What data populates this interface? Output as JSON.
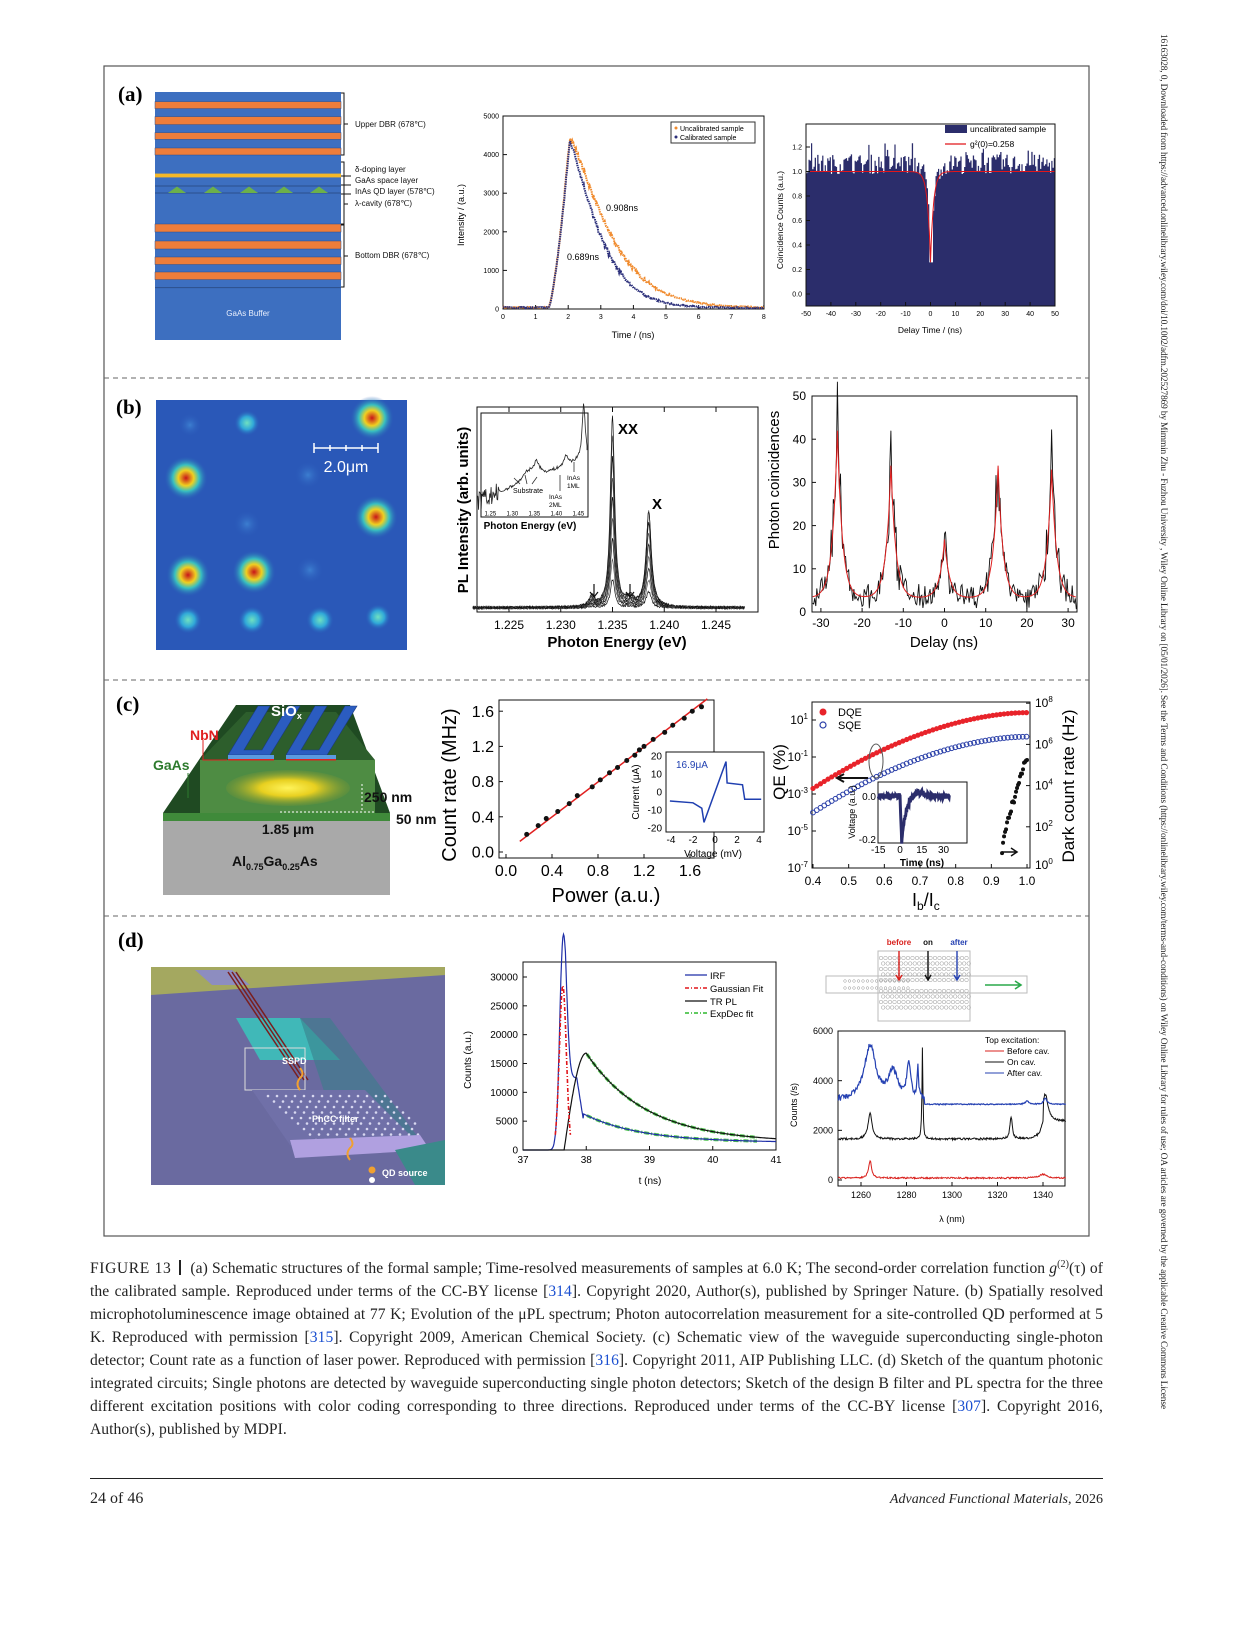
{
  "side_notice": "16163028, 0, Downloaded from https://advanced.onlinelibrary.wiley.com/doi/10.1002/adfm.202527869 by Mimmin Zhu - Fuzhou University , Wiley Online Library on [05/01/2026]. See the Terms and Conditions (https://onlinelibrary.wiley.com/terms-and-conditions) on Wiley Online Library for rules of use; OA articles are governed by the applicable Creative Commons License",
  "figure": {
    "panel_labels": {
      "a": "(a)",
      "b": "(b)",
      "c": "(c)",
      "d": "(d)"
    },
    "a": {
      "schematic": {
        "upper_dbr": "Upper DBR (678℃)",
        "delta_doping": "δ-doping layer",
        "gaas_space": "GaAs space layer",
        "inas_qd": "InAs QD layer (578℃)",
        "cavity": "λ-cavity (678℃)",
        "bottom_dbr": "Bottom DBR (678℃)",
        "buffer": "GaAs Buffer"
      },
      "trpl": {
        "xlabel": "Time / (ns)",
        "ylabel": "Intensity / (a.u.)",
        "xticks": [
          0,
          1,
          2,
          3,
          4,
          5,
          6,
          7,
          8
        ],
        "yticks": [
          0,
          1000,
          2000,
          3000,
          4000,
          5000
        ],
        "legend": {
          "uncalibrated": "Uncalibrated sample",
          "calibrated": "Calibrated sample"
        },
        "annotation_uncal": "0.908ns",
        "annotation_cal": "0.689ns",
        "lifetimes_ns": {
          "uncalibrated": 0.908,
          "calibrated": 0.689
        },
        "peak": {
          "time_ns": 2.05,
          "intensity": 4400
        },
        "colors": {
          "uncalibrated": "#f08a2c",
          "calibrated": "#2b2f7a"
        }
      },
      "g2": {
        "xlabel": "Delay Time / (ns)",
        "ylabel": "Coincidence Counts (a.u.)",
        "xticks": [
          -50,
          -40,
          -30,
          -20,
          -10,
          0,
          10,
          20,
          30,
          40,
          50
        ],
        "yticks": [
          "0.0",
          "0.2",
          "0.4",
          "0.6",
          "0.8",
          "1.0",
          "1.2"
        ],
        "legend_bar": "uncalibrated sample",
        "legend_fit": "g²(0)=0.258",
        "g2_zero": 0.258,
        "baseline": 1.0,
        "colors": {
          "bars": "#2b2d6b",
          "fit": "#e0161b"
        }
      }
    },
    "b": {
      "map": {
        "scale_bar": "2.0μm"
      },
      "pl": {
        "ylabel": "PL Intensity (arb. units)",
        "xlabel": "Photon Energy (eV)",
        "xticks": [
          "1.225",
          "1.230",
          "1.235",
          "1.240",
          "1.245"
        ],
        "peak_xx": "XX",
        "peak_x": "X",
        "peak_positions_ev": {
          "XX": 1.235,
          "X": 1.2385
        },
        "inset": {
          "xlabel": "Photon Energy (eV)",
          "xticks": [
            "1.25",
            "1.30",
            "1.35",
            "1.40",
            "1.45"
          ],
          "substrate": "Substrate",
          "inas_1ml_a": "InAs",
          "inas_1ml_b": "1ML",
          "inas_2ml_a": "InAs",
          "inas_2ml_b": "2ML"
        }
      },
      "autocorr": {
        "ylabel": "Photon coincidences",
        "xlabel": "Delay (ns)",
        "xticks": [
          -30,
          -20,
          -10,
          0,
          10,
          20,
          30
        ],
        "yticks": [
          0,
          10,
          20,
          30,
          40,
          50
        ],
        "peaks": [
          {
            "delay": -26,
            "height": 43
          },
          {
            "delay": -13,
            "height": 34
          },
          {
            "delay": 0,
            "height": 15
          },
          {
            "delay": 13,
            "height": 34
          },
          {
            "delay": 26,
            "height": 33
          }
        ]
      }
    },
    "c": {
      "schematic": {
        "siox": "SiO",
        "siox_sub": "x",
        "nbn": "NbN",
        "gaas": "GaAs",
        "thick_250": "250 nm",
        "thick_50": "50 nm",
        "width": "1.85 μm",
        "sub_al": "Al",
        "sub_al_x": "0.75",
        "sub_ga": "Ga",
        "sub_ga_x": "0.25",
        "sub_as": "As"
      },
      "count_rate": {
        "ylabel": "Count rate (MHz)",
        "xlabel": "Power (a.u.)",
        "xticks": [
          "0.0",
          "0.4",
          "0.8",
          "1.2",
          "1.6"
        ],
        "yticks": [
          "0.0",
          "0.4",
          "0.8",
          "1.2",
          "1.6"
        ],
        "points": [
          [
            0.18,
            0.2
          ],
          [
            0.28,
            0.3
          ],
          [
            0.35,
            0.38
          ],
          [
            0.45,
            0.46
          ],
          [
            0.55,
            0.55
          ],
          [
            0.62,
            0.64
          ],
          [
            0.75,
            0.74
          ],
          [
            0.82,
            0.82
          ],
          [
            0.9,
            0.9
          ],
          [
            0.97,
            0.96
          ],
          [
            1.05,
            1.04
          ],
          [
            1.12,
            1.1
          ],
          [
            1.16,
            1.16
          ],
          [
            1.2,
            1.2
          ],
          [
            1.28,
            1.28
          ],
          [
            1.38,
            1.36
          ],
          [
            1.45,
            1.44
          ],
          [
            1.55,
            1.52
          ],
          [
            1.62,
            1.6
          ],
          [
            1.7,
            1.65
          ]
        ],
        "inset": {
          "ylabel": "Current (μA)",
          "xlabel": "Voltage (mV)",
          "xticks": [
            "-4",
            "-2",
            "0",
            "2",
            "4"
          ],
          "yticks": [
            "20",
            "10",
            "0",
            "-10",
            "-20"
          ],
          "annotation": "16.9μA"
        }
      },
      "qe": {
        "ylabel": "QE (%)",
        "ylabel_right": "Dark count rate (Hz)",
        "xlabel_main": "I",
        "xlabel_sub1": "b",
        "xlabel_slash": "/I",
        "xlabel_sub2": "c",
        "xticks": [
          "0.4",
          "0.5",
          "0.6",
          "0.7",
          "0.8",
          "0.9",
          "1.0"
        ],
        "yticks_left": [
          1,
          -1,
          -3,
          -5,
          -7
        ],
        "yticks_right": [
          8,
          6,
          4,
          2,
          0
        ],
        "legend_dqe": "DQE",
        "legend_sqe": "SQE",
        "colors": {
          "dqe": "#e8232a",
          "sqe": "#2a3fa8"
        },
        "inset": {
          "ylabel": "Voltage (a.u.)",
          "xlabel": "Time (ns)",
          "xticks": [
            "-15",
            "0",
            "15",
            "30"
          ],
          "yticks": [
            "0.0",
            "-0.2"
          ]
        }
      }
    },
    "d": {
      "chip": {
        "sspd": "SSPD",
        "phcc": "PhCC filter",
        "qd": "QD source"
      },
      "trpl": {
        "ylabel": "Counts (a.u.)",
        "xlabel": "t (ns)",
        "xticks": [
          37,
          38,
          39,
          40,
          41
        ],
        "yticks": [
          0,
          5000,
          10000,
          15000,
          20000,
          25000,
          30000
        ],
        "legend": [
          "IRF",
          "Gaussian Fit",
          "TR PL",
          "ExpDec fit"
        ],
        "colors": {
          "irf": "#1f2fa8",
          "gauss": "#e0161b",
          "trpl": "#111111",
          "expdec": "#4cc24c"
        }
      },
      "filter": {
        "before": "before",
        "on": "on",
        "after": "after"
      },
      "spectra": {
        "ylabel": "Counts (/s)",
        "xlabel": "λ (nm)",
        "xticks": [
          1260,
          1280,
          1300,
          1320,
          1340
        ],
        "yticks": [
          0,
          2000,
          4000,
          6000
        ],
        "legend_title": "Top excitation:",
        "legend": [
          "Before cav.",
          "On cav.",
          "After cav."
        ],
        "colors": {
          "before": "#d9201c",
          "on": "#111111",
          "after": "#2541b2"
        }
      }
    }
  },
  "caption": {
    "label": "FIGURE 13",
    "t1": "(a) Schematic structures of the formal sample; Time-resolved measurements of samples at 6.0 K; The second-order correlation function ",
    "g": "g",
    "g_sup": "(2)",
    "g_arg": "(τ)",
    "t2": " of the calibrated sample. Reproduced under terms of the CC-BY license [",
    "ref1": "314",
    "t3": "]. Copyright 2020, Author(s), published by Springer Nature. (b) Spatially resolved microphotoluminescence image obtained at 77 K; Evolution of the μPL spectrum; Photon autocorrelation measurement for a site-controlled QD performed at 5 K. Reproduced with permission [",
    "ref2": "315",
    "t4": "]. Copyright 2009, American Chemical Society. (c) Schematic view of the waveguide superconducting single-photon detector; Count rate as a function of laser power. Reproduced with permission [",
    "ref3": "316",
    "t5": "]. Copyright 2011, AIP Publishing LLC. (d) Sketch of the quantum photonic integrated circuits; Single photons are detected by waveguide superconducting single photon detectors; Sketch of the design B filter and PL spectra for the three different excitation positions with color coding corresponding to three directions. Reproduced under terms of the CC-BY license [",
    "ref4": "307",
    "t6": "]. Copyright 2016, Author(s), published by MDPI."
  },
  "footer": {
    "page": "24 of 46",
    "journal": "Advanced Functional Materials",
    "year": ", 2026"
  }
}
